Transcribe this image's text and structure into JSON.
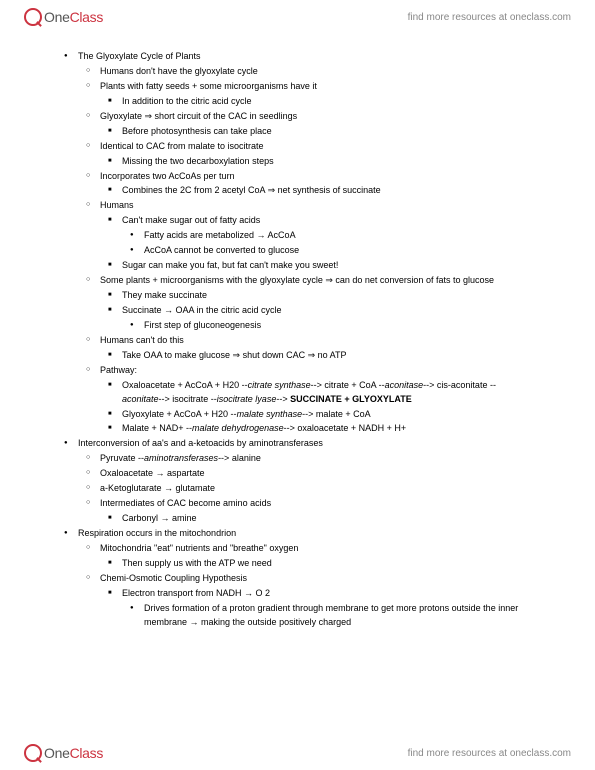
{
  "brand": {
    "one": "One",
    "class": "Class"
  },
  "tagline": "find more resources at oneclass.com",
  "colors": {
    "accent": "#cc3340",
    "text": "#000000",
    "muted": "#888888",
    "bg": "#ffffff"
  },
  "typography": {
    "body_fontsize_pt": 7,
    "logo_fontsize_pt": 11,
    "tagline_fontsize_pt": 8
  },
  "lines": [
    {
      "lvl": 1,
      "b": "disc",
      "t": "The Glyoxylate Cycle of Plants"
    },
    {
      "lvl": 2,
      "b": "circ",
      "t": "Humans don't have the glyoxylate cycle"
    },
    {
      "lvl": 2,
      "b": "circ",
      "t": "Plants with fatty seeds + some microorganisms have it"
    },
    {
      "lvl": 3,
      "b": "sq",
      "t": "In addition to the citric acid cycle"
    },
    {
      "lvl": 2,
      "b": "circ",
      "t": "Glyoxylate ⇒ short circuit of the CAC in seedlings"
    },
    {
      "lvl": 3,
      "b": "sq",
      "t": "Before photosynthesis can take place"
    },
    {
      "lvl": 2,
      "b": "circ",
      "t": "Identical to CAC from malate to isocitrate"
    },
    {
      "lvl": 3,
      "b": "sq",
      "t": "Missing the two decarboxylation steps"
    },
    {
      "lvl": 2,
      "b": "circ",
      "t": "Incorporates two AcCoAs per turn"
    },
    {
      "lvl": 3,
      "b": "sq",
      "t": "Combines the 2C from 2 acetyl CoA ⇒ net synthesis of succinate"
    },
    {
      "lvl": 2,
      "b": "circ",
      "t": "Humans"
    },
    {
      "lvl": 3,
      "b": "sq",
      "t": "Can't make sugar out of fatty acids"
    },
    {
      "lvl": 4,
      "b": "disc",
      "t": "Fatty acids are metabolized → AcCoA"
    },
    {
      "lvl": 4,
      "b": "disc",
      "t": "AcCoA cannot be converted to glucose"
    },
    {
      "lvl": 3,
      "b": "sq",
      "t": "Sugar can make you fat, but fat can't make you sweet!"
    },
    {
      "lvl": 2,
      "b": "circ",
      "t": "Some plants + microorganisms with the glyoxylate cycle ⇒ can do net conversion of fats to glucose"
    },
    {
      "lvl": 3,
      "b": "sq",
      "t": "They make succinate"
    },
    {
      "lvl": 3,
      "b": "sq",
      "t": "Succinate → OAA in the citric acid cycle"
    },
    {
      "lvl": 4,
      "b": "disc",
      "t": "First step of gluconeogenesis"
    },
    {
      "lvl": 2,
      "b": "circ",
      "t": "Humans can't do this"
    },
    {
      "lvl": 3,
      "b": "sq",
      "t": "Take OAA to make glucose ⇒ shut down CAC ⇒ no ATP"
    },
    {
      "lvl": 2,
      "b": "circ",
      "t": "Pathway:"
    },
    {
      "lvl": 3,
      "b": "sq",
      "html": "Oxaloacetate + AcCoA + H20 --<em>citrate synthase</em>--> citrate + CoA --<em>aconitase</em>--> cis-aconitate --<em>aconitate</em>--> isocitrate --<em>isocitrate lyase</em>--> <strong>SUCCINATE + GLYOXYLATE</strong>"
    },
    {
      "lvl": 3,
      "b": "sq",
      "html": "Glyoxylate + AcCoA + H20 --<em>malate synthase</em>--> malate + CoA"
    },
    {
      "lvl": 3,
      "b": "sq",
      "html": "Malate + NAD+ --<em>malate dehydrogenase</em>--> oxaloacetate + NADH + H+"
    },
    {
      "lvl": 1,
      "b": "disc",
      "t": "Interconversion of aa's and a-ketoacids by aminotransferases"
    },
    {
      "lvl": 2,
      "b": "circ",
      "html": "Pyruvate --<em>aminotransferases</em>--> alanine"
    },
    {
      "lvl": 2,
      "b": "circ",
      "t": "Oxaloacetate → aspartate"
    },
    {
      "lvl": 2,
      "b": "circ",
      "t": "a-Ketoglutarate → glutamate"
    },
    {
      "lvl": 2,
      "b": "circ",
      "t": "Intermediates of CAC become amino acids"
    },
    {
      "lvl": 3,
      "b": "sq",
      "t": "Carbonyl → amine"
    },
    {
      "lvl": 1,
      "b": "disc",
      "t": "Respiration occurs in the mitochondrion"
    },
    {
      "lvl": 2,
      "b": "circ",
      "t": "Mitochondria \"eat\" nutrients and \"breathe\" oxygen"
    },
    {
      "lvl": 3,
      "b": "sq",
      "t": "Then supply us with the ATP we need"
    },
    {
      "lvl": 2,
      "b": "circ",
      "t": "Chemi-Osmotic Coupling Hypothesis"
    },
    {
      "lvl": 3,
      "b": "sq",
      "t": "Electron transport from NADH → O 2"
    },
    {
      "lvl": 4,
      "b": "disc",
      "t": "Drives formation of a proton gradient through membrane to get more protons outside the inner membrane → making the outside positively charged"
    }
  ]
}
